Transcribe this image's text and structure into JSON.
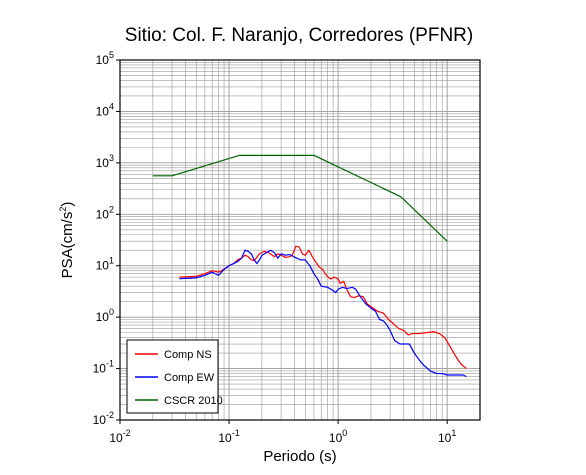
{
  "chart_data": {
    "type": "line",
    "title": "Sitio: Col. F. Naranjo, Corredores (PFNR)",
    "xlabel": "Periodo (s)",
    "ylabel": {
      "base": "PSA(cm/s",
      "sup": "2",
      "tail": ")"
    },
    "xscale": "log",
    "yscale": "log",
    "xlim": [
      0.01,
      20
    ],
    "ylim": [
      0.01,
      100000
    ],
    "grid": true,
    "legend_position": "bottom-left",
    "x_ticks": [
      {
        "value": 0.01,
        "base": "10",
        "exp": "-2"
      },
      {
        "value": 0.1,
        "base": "10",
        "exp": "-1"
      },
      {
        "value": 1,
        "base": "10",
        "exp": "0"
      },
      {
        "value": 10,
        "base": "10",
        "exp": "1"
      }
    ],
    "y_ticks": [
      {
        "value": 0.01,
        "base": "10",
        "exp": "-2"
      },
      {
        "value": 0.1,
        "base": "10",
        "exp": "-1"
      },
      {
        "value": 1,
        "base": "10",
        "exp": "0"
      },
      {
        "value": 10,
        "base": "10",
        "exp": "1"
      },
      {
        "value": 100,
        "base": "10",
        "exp": "2"
      },
      {
        "value": 1000,
        "base": "10",
        "exp": "3"
      },
      {
        "value": 10000,
        "base": "10",
        "exp": "4"
      },
      {
        "value": 100000,
        "base": "10",
        "exp": "5"
      }
    ],
    "series": [
      {
        "name": "Comp NS",
        "color": "#ff0000",
        "points": [
          [
            0.035,
            6.0
          ],
          [
            0.05,
            6.2
          ],
          [
            0.06,
            7.0
          ],
          [
            0.07,
            8.0
          ],
          [
            0.08,
            7.5
          ],
          [
            0.09,
            8.5
          ],
          [
            0.1,
            10.0
          ],
          [
            0.11,
            11.0
          ],
          [
            0.12,
            13.0
          ],
          [
            0.13,
            14.0
          ],
          [
            0.14,
            16.0
          ],
          [
            0.15,
            15.0
          ],
          [
            0.16,
            13.0
          ],
          [
            0.17,
            12.5
          ],
          [
            0.19,
            17.0
          ],
          [
            0.21,
            19.0
          ],
          [
            0.23,
            18.0
          ],
          [
            0.26,
            15.0
          ],
          [
            0.28,
            17.0
          ],
          [
            0.3,
            16.0
          ],
          [
            0.33,
            14.5
          ],
          [
            0.36,
            15.0
          ],
          [
            0.38,
            16.0
          ],
          [
            0.41,
            24.0
          ],
          [
            0.44,
            23.0
          ],
          [
            0.47,
            17.0
          ],
          [
            0.5,
            16.0
          ],
          [
            0.54,
            20.0
          ],
          [
            0.58,
            15.0
          ],
          [
            0.62,
            12.0
          ],
          [
            0.67,
            9.5
          ],
          [
            0.72,
            8.5
          ],
          [
            0.78,
            6.5
          ],
          [
            0.85,
            5.5
          ],
          [
            0.92,
            6.0
          ],
          [
            1.0,
            5.5
          ],
          [
            1.05,
            4.5
          ],
          [
            1.12,
            5.0
          ],
          [
            1.2,
            3.5
          ],
          [
            1.3,
            2.5
          ],
          [
            1.4,
            2.4
          ],
          [
            1.55,
            2.6
          ],
          [
            1.7,
            2.5
          ],
          [
            1.85,
            1.8
          ],
          [
            2.0,
            1.6
          ],
          [
            2.3,
            1.3
          ],
          [
            2.6,
            1.2
          ],
          [
            2.9,
            0.9
          ],
          [
            3.2,
            0.75
          ],
          [
            3.6,
            0.6
          ],
          [
            4.0,
            0.55
          ],
          [
            4.4,
            0.45
          ],
          [
            4.8,
            0.48
          ],
          [
            5.5,
            0.48
          ],
          [
            6.5,
            0.5
          ],
          [
            7.5,
            0.52
          ],
          [
            8.5,
            0.48
          ],
          [
            9.5,
            0.4
          ],
          [
            10.5,
            0.28
          ],
          [
            11.5,
            0.2
          ],
          [
            12.5,
            0.15
          ],
          [
            13.5,
            0.12
          ],
          [
            15.0,
            0.1
          ]
        ]
      },
      {
        "name": "Comp EW",
        "color": "#0000ff",
        "points": [
          [
            0.035,
            5.6
          ],
          [
            0.05,
            5.8
          ],
          [
            0.06,
            6.5
          ],
          [
            0.07,
            7.5
          ],
          [
            0.08,
            6.5
          ],
          [
            0.09,
            8.5
          ],
          [
            0.1,
            10.0
          ],
          [
            0.11,
            11.0
          ],
          [
            0.12,
            12.0
          ],
          [
            0.13,
            14.0
          ],
          [
            0.14,
            20.0
          ],
          [
            0.15,
            19.0
          ],
          [
            0.16,
            17.0
          ],
          [
            0.17,
            13.0
          ],
          [
            0.18,
            11.0
          ],
          [
            0.19,
            13.0
          ],
          [
            0.2,
            16.0
          ],
          [
            0.22,
            18.0
          ],
          [
            0.24,
            20.0
          ],
          [
            0.26,
            18.0
          ],
          [
            0.28,
            14.0
          ],
          [
            0.3,
            17.0
          ],
          [
            0.33,
            16.0
          ],
          [
            0.36,
            16.5
          ],
          [
            0.39,
            15.0
          ],
          [
            0.42,
            14.0
          ],
          [
            0.45,
            13.0
          ],
          [
            0.5,
            13.0
          ],
          [
            0.55,
            10.0
          ],
          [
            0.6,
            7.0
          ],
          [
            0.65,
            5.5
          ],
          [
            0.7,
            4.0
          ],
          [
            0.8,
            3.8
          ],
          [
            0.9,
            3.3
          ],
          [
            0.95,
            3.0
          ],
          [
            1.0,
            3.5
          ],
          [
            1.1,
            3.8
          ],
          [
            1.2,
            3.6
          ],
          [
            1.35,
            3.8
          ],
          [
            1.45,
            3.5
          ],
          [
            1.6,
            2.5
          ],
          [
            1.8,
            1.8
          ],
          [
            2.0,
            1.5
          ],
          [
            2.2,
            1.3
          ],
          [
            2.4,
            0.9
          ],
          [
            2.6,
            0.85
          ],
          [
            2.8,
            0.7
          ],
          [
            3.0,
            0.55
          ],
          [
            3.3,
            0.35
          ],
          [
            3.7,
            0.3
          ],
          [
            4.0,
            0.3
          ],
          [
            4.5,
            0.3
          ],
          [
            5.0,
            0.2
          ],
          [
            5.5,
            0.15
          ],
          [
            6.0,
            0.12
          ],
          [
            7.0,
            0.09
          ],
          [
            8.0,
            0.08
          ],
          [
            9.0,
            0.08
          ],
          [
            10.0,
            0.075
          ],
          [
            12.0,
            0.075
          ],
          [
            14.0,
            0.075
          ],
          [
            15.0,
            0.07
          ]
        ]
      },
      {
        "name": "CSCR 2010",
        "color": "#006400",
        "points": [
          [
            0.02,
            560
          ],
          [
            0.03,
            560
          ],
          [
            0.125,
            1400
          ],
          [
            0.6,
            1400
          ],
          [
            3.75,
            220
          ],
          [
            10.0,
            30
          ]
        ]
      }
    ]
  }
}
